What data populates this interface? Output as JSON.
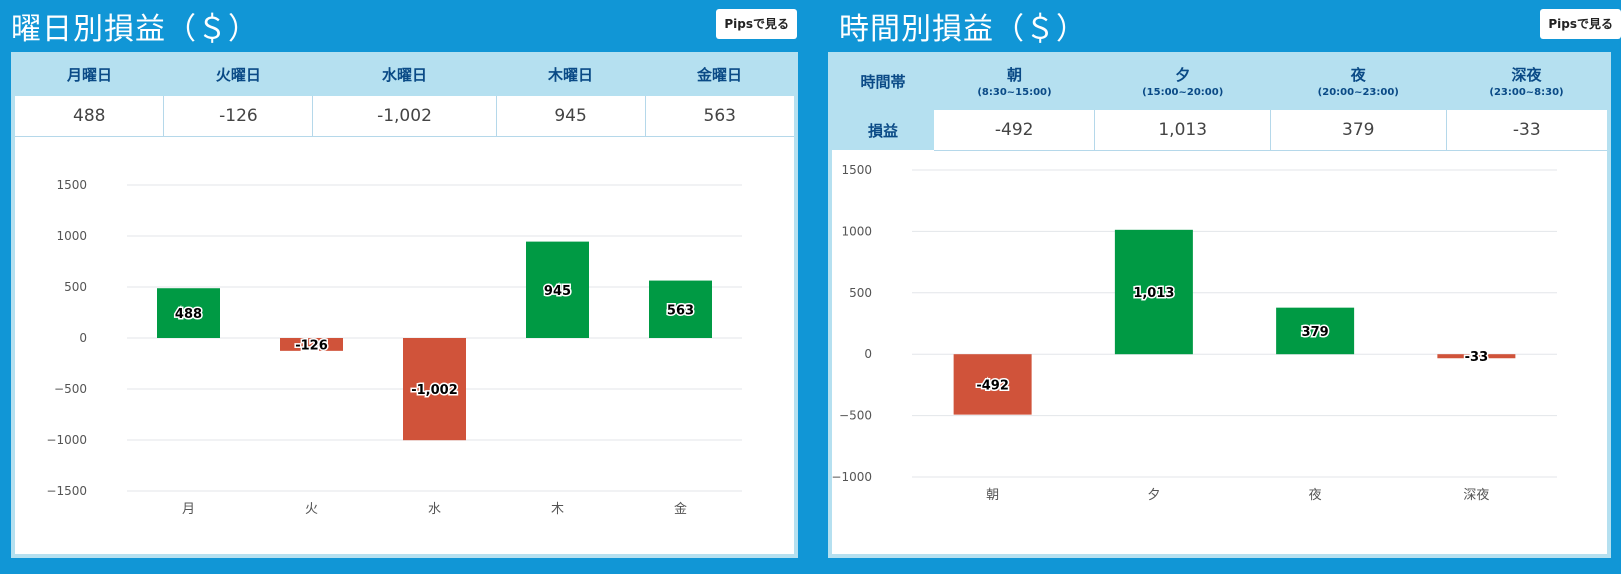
{
  "day_panel": {
    "title": "曜日別損益（＄）",
    "pips_button": "Pipsで見る",
    "headers": [
      "月曜日",
      "火曜日",
      "水曜日",
      "木曜日",
      "金曜日"
    ],
    "values": [
      "488",
      "-126",
      "-1,002",
      "945",
      "563"
    ]
  },
  "time_panel": {
    "title": "時間別損益（＄）",
    "pips_button": "Pipsで見る",
    "header_label": "時間帯",
    "row_label": "損益",
    "headers": [
      {
        "name": "朝",
        "range": "(8:30~15:00)"
      },
      {
        "name": "夕",
        "range": "(15:00~20:00)"
      },
      {
        "name": "夜",
        "range": "(20:00~23:00)"
      },
      {
        "name": "深夜",
        "range": "(23:00~8:30)"
      }
    ],
    "values": [
      "-492",
      "1,013",
      "379",
      "-33"
    ]
  },
  "chart_data": [
    {
      "type": "bar",
      "categories": [
        "月",
        "火",
        "水",
        "木",
        "金"
      ],
      "values": [
        488,
        -126,
        -1002,
        945,
        563
      ],
      "labels": [
        "488",
        "-126",
        "-1,002",
        "945",
        "563"
      ],
      "yticks": [
        "1500",
        "1000",
        "500",
        "0",
        "−500",
        "−1000",
        "−1500"
      ],
      "ylim": [
        -1500,
        1500
      ],
      "grid": true,
      "positive_color": "#009a44",
      "negative_color": "#d0533a"
    },
    {
      "type": "bar",
      "categories": [
        "朝",
        "夕",
        "夜",
        "深夜"
      ],
      "values": [
        -492,
        1013,
        379,
        -33
      ],
      "labels": [
        "-492",
        "1,013",
        "379",
        "-33"
      ],
      "yticks": [
        "1500",
        "1000",
        "500",
        "0",
        "−500",
        "−1000"
      ],
      "ylim": [
        -1000,
        1500
      ],
      "grid": true,
      "positive_color": "#009a44",
      "negative_color": "#d0533a"
    }
  ]
}
